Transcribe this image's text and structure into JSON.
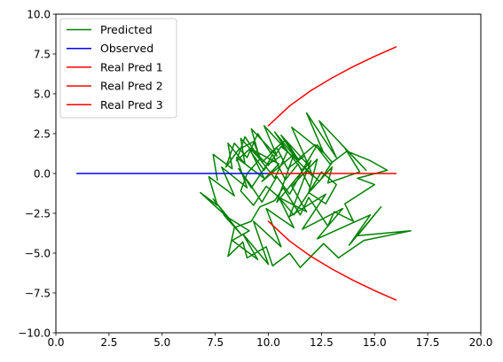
{
  "chart_data": {
    "type": "line",
    "xlim": [
      0.0,
      20.0
    ],
    "ylim": [
      -10.0,
      10.0
    ],
    "x_ticks": [
      0.0,
      2.5,
      5.0,
      7.5,
      10.0,
      12.5,
      15.0,
      17.5,
      20.0
    ],
    "y_ticks": [
      -10.0,
      -7.5,
      -5.0,
      -2.5,
      0.0,
      2.5,
      5.0,
      7.5,
      10.0
    ],
    "x_tick_labels": [
      "0.0",
      "2.5",
      "5.0",
      "7.5",
      "10.0",
      "12.5",
      "15.0",
      "17.5",
      "20.0"
    ],
    "y_tick_labels": [
      "−10.0",
      "−7.5",
      "−5.0",
      "−2.5",
      "0.0",
      "2.5",
      "5.0",
      "7.5",
      "10.0"
    ],
    "grid": false,
    "legend_position": "top-left",
    "title": "",
    "xlabel": "",
    "ylabel": "",
    "series": [
      {
        "name": "Predicted",
        "color": "#008000",
        "note": "dense random-walk scribble centered near (9.5, 0.5); values approximated",
        "x": [
          7.6,
          7.4,
          8.3,
          8.1,
          8.9,
          8.7,
          9.6,
          9.2,
          10.4,
          9.8,
          10.9,
          10.3,
          11.4,
          10.6,
          11.9,
          11.1,
          12.6,
          11.8,
          13.2,
          12.4,
          14.6,
          13.6,
          14.3,
          12.8,
          13.0,
          11.9,
          12.3,
          11.1,
          11.8,
          10.5,
          11.2,
          9.9,
          10.6,
          9.3,
          10.0,
          8.8,
          9.5,
          8.3,
          9.1,
          7.9,
          8.7,
          7.4,
          8.2,
          6.8,
          7.6,
          7.2,
          8.4,
          7.8,
          9.0,
          8.5,
          9.8,
          9.1,
          10.5,
          9.7,
          11.2,
          10.4,
          12.0,
          11.0,
          12.7,
          11.6,
          13.5,
          12.3,
          14.8,
          13.8,
          15.3,
          14.2,
          16.7,
          14.5,
          13.3,
          12.6,
          11.5,
          11.0,
          10.2,
          9.9,
          9.0,
          8.8,
          8.1,
          8.4,
          9.2,
          9.6,
          10.3,
          10.7,
          11.5,
          11.9,
          12.8,
          13.1,
          14.0,
          13.6,
          15.0,
          14.2,
          15.6,
          14.8,
          13.7,
          12.9,
          12.2,
          11.4,
          10.8,
          10.1,
          9.5,
          9.0,
          8.4,
          8.0,
          8.6,
          9.3,
          9.7,
          10.4,
          10.9,
          11.7,
          12.1,
          11.3,
          10.6,
          10.0,
          9.4,
          8.9,
          8.5,
          9.1,
          9.8,
          10.2,
          10.8,
          11.4,
          12.0,
          12.5,
          13.2,
          12.7,
          11.9,
          11.2,
          10.5,
          9.9,
          9.3,
          8.7,
          9.0,
          9.6,
          10.3,
          10.9,
          11.6,
          12.3,
          13.0,
          12.4,
          11.7,
          11.0,
          10.4,
          9.7,
          9.1,
          8.6,
          9.2,
          9.9,
          10.6
        ],
        "y": [
          -0.4,
          1.2,
          0.3,
          1.9,
          0.6,
          2.2,
          0.9,
          2.8,
          1.1,
          3.0,
          1.4,
          2.6,
          0.8,
          2.4,
          0.5,
          2.9,
          1.3,
          3.8,
          1.0,
          3.3,
          0.2,
          1.6,
          0.1,
          -0.6,
          0.4,
          -1.2,
          0.9,
          -0.8,
          -2.4,
          -1.5,
          -3.4,
          -2.2,
          -4.6,
          -3.0,
          -5.7,
          -3.8,
          -5.4,
          -4.2,
          -3.6,
          -2.6,
          -3.8,
          -1.6,
          -2.9,
          -1.2,
          -2.0,
          -0.2,
          -1.4,
          0.4,
          -0.9,
          1.0,
          -0.3,
          1.6,
          0.6,
          -0.5,
          1.2,
          -1.8,
          0.8,
          -2.7,
          -1.3,
          -3.5,
          -2.2,
          -4.1,
          -2.6,
          -4.5,
          -2.1,
          -3.9,
          -3.6,
          -4.2,
          -5.3,
          -4.4,
          -5.9,
          -5.0,
          -5.8,
          -4.6,
          -5.3,
          -4.3,
          -5.2,
          -3.4,
          -3.0,
          -2.1,
          -1.7,
          -0.9,
          -2.6,
          -1.5,
          -3.3,
          -2.4,
          -3.0,
          -1.9,
          -0.7,
          -0.3,
          0.2,
          0.8,
          1.4,
          0.6,
          1.8,
          0.9,
          2.1,
          1.3,
          2.5,
          1.0,
          1.9,
          0.4,
          1.5,
          2.0,
          0.7,
          1.6,
          0.3,
          1.1,
          -0.2,
          0.9,
          1.7,
          0.5,
          1.3,
          2.3,
          0.8,
          1.5,
          0.2,
          1.2,
          -0.4,
          0.6,
          -1.0,
          0.1,
          -0.7,
          -1.9,
          -1.2,
          -2.6,
          -1.5,
          -0.8,
          -2.0,
          -1.1,
          0.0,
          0.9,
          -0.3,
          1.4,
          0.2,
          1.8,
          0.7,
          -0.5,
          0.4,
          -1.3,
          -0.2,
          -1.8,
          -0.6,
          0.3,
          -0.9,
          0.5,
          1.1
        ]
      },
      {
        "name": "Observed",
        "color": "#0000ff",
        "x": [
          1,
          2,
          3,
          4,
          5,
          6,
          7,
          8,
          9,
          10
        ],
        "y": [
          0,
          0,
          0,
          0,
          0,
          0,
          0,
          0,
          0,
          0
        ]
      },
      {
        "name": "Real Pred 1",
        "color": "#ff0000",
        "x": [
          10,
          11,
          12,
          13,
          14,
          15,
          16
        ],
        "y": [
          3.0,
          4.24,
          5.2,
          6.0,
          6.71,
          7.35,
          7.94
        ]
      },
      {
        "name": "Real Pred 2",
        "color": "#ff0000",
        "x": [
          10,
          11,
          12,
          13,
          14,
          15,
          16
        ],
        "y": [
          0,
          0,
          0,
          0,
          0,
          0,
          0
        ]
      },
      {
        "name": "Real Pred 3",
        "color": "#ff0000",
        "x": [
          10,
          11,
          12,
          13,
          14,
          15,
          16
        ],
        "y": [
          -3.0,
          -4.24,
          -5.2,
          -6.0,
          -6.71,
          -7.35,
          -7.94
        ]
      }
    ]
  }
}
